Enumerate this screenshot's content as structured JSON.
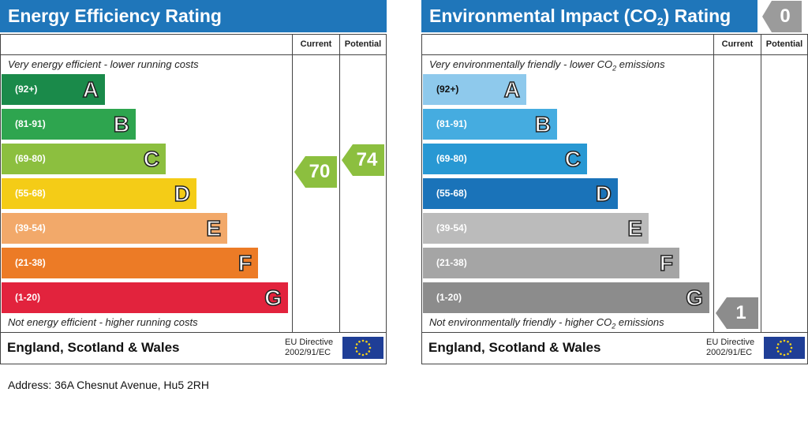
{
  "chart_data": [
    {
      "type": "bar",
      "title": "Energy Efficiency Rating",
      "column_headers": [
        "Current",
        "Potential"
      ],
      "top_note": "Very energy efficient - lower running costs",
      "bottom_note": "Not energy efficient - higher running costs",
      "bands": [
        {
          "range": "(92+)",
          "letter": "A",
          "color": "#1a8a4a"
        },
        {
          "range": "(81-91)",
          "letter": "B",
          "color": "#2ea54f"
        },
        {
          "range": "(69-80)",
          "letter": "C",
          "color": "#8cbf3f"
        },
        {
          "range": "(55-68)",
          "letter": "D",
          "color": "#f4cc17"
        },
        {
          "range": "(39-54)",
          "letter": "E",
          "color": "#f2a96a"
        },
        {
          "range": "(21-38)",
          "letter": "F",
          "color": "#ec7b26"
        },
        {
          "range": "(1-20)",
          "letter": "G",
          "color": "#e2233d"
        }
      ],
      "current": {
        "value": "70",
        "band": "C",
        "color": "#8cbf3f"
      },
      "potential": {
        "value": "74",
        "band": "C",
        "color": "#8cbf3f"
      },
      "footer": "England, Scotland & Wales",
      "directive_line1": "EU Directive",
      "directive_line2": "2002/91/EC"
    },
    {
      "type": "bar",
      "title_main": "Environmental Impact (CO",
      "title_sub": "2",
      "title_end": ") Rating",
      "badge": "0",
      "column_headers": [
        "Current",
        "Potential"
      ],
      "top_note_main": "Very environmentally friendly - lower CO",
      "top_note_sub": "2",
      "top_note_end": " emissions",
      "bottom_note_main": "Not environmentally friendly - higher CO",
      "bottom_note_sub": "2",
      "bottom_note_end": " emissions",
      "bands": [
        {
          "range": "(92+)",
          "letter": "A",
          "color": "#8ec9ec"
        },
        {
          "range": "(81-91)",
          "letter": "B",
          "color": "#45ace0"
        },
        {
          "range": "(69-80)",
          "letter": "C",
          "color": "#2898d3"
        },
        {
          "range": "(55-68)",
          "letter": "D",
          "color": "#1a73b9"
        },
        {
          "range": "(39-54)",
          "letter": "E",
          "color": "#bbbbbb"
        },
        {
          "range": "(21-38)",
          "letter": "F",
          "color": "#a5a5a5"
        },
        {
          "range": "(1-20)",
          "letter": "G",
          "color": "#8c8c8c"
        }
      ],
      "current": {
        "value": "1",
        "band": "G",
        "color": "#8c8c8c"
      },
      "footer": "England, Scotland & Wales",
      "directive_line1": "EU Directive",
      "directive_line2": "2002/91/EC"
    }
  ],
  "address": "Address: 36A Chesnut Avenue, Hu5 2RH"
}
